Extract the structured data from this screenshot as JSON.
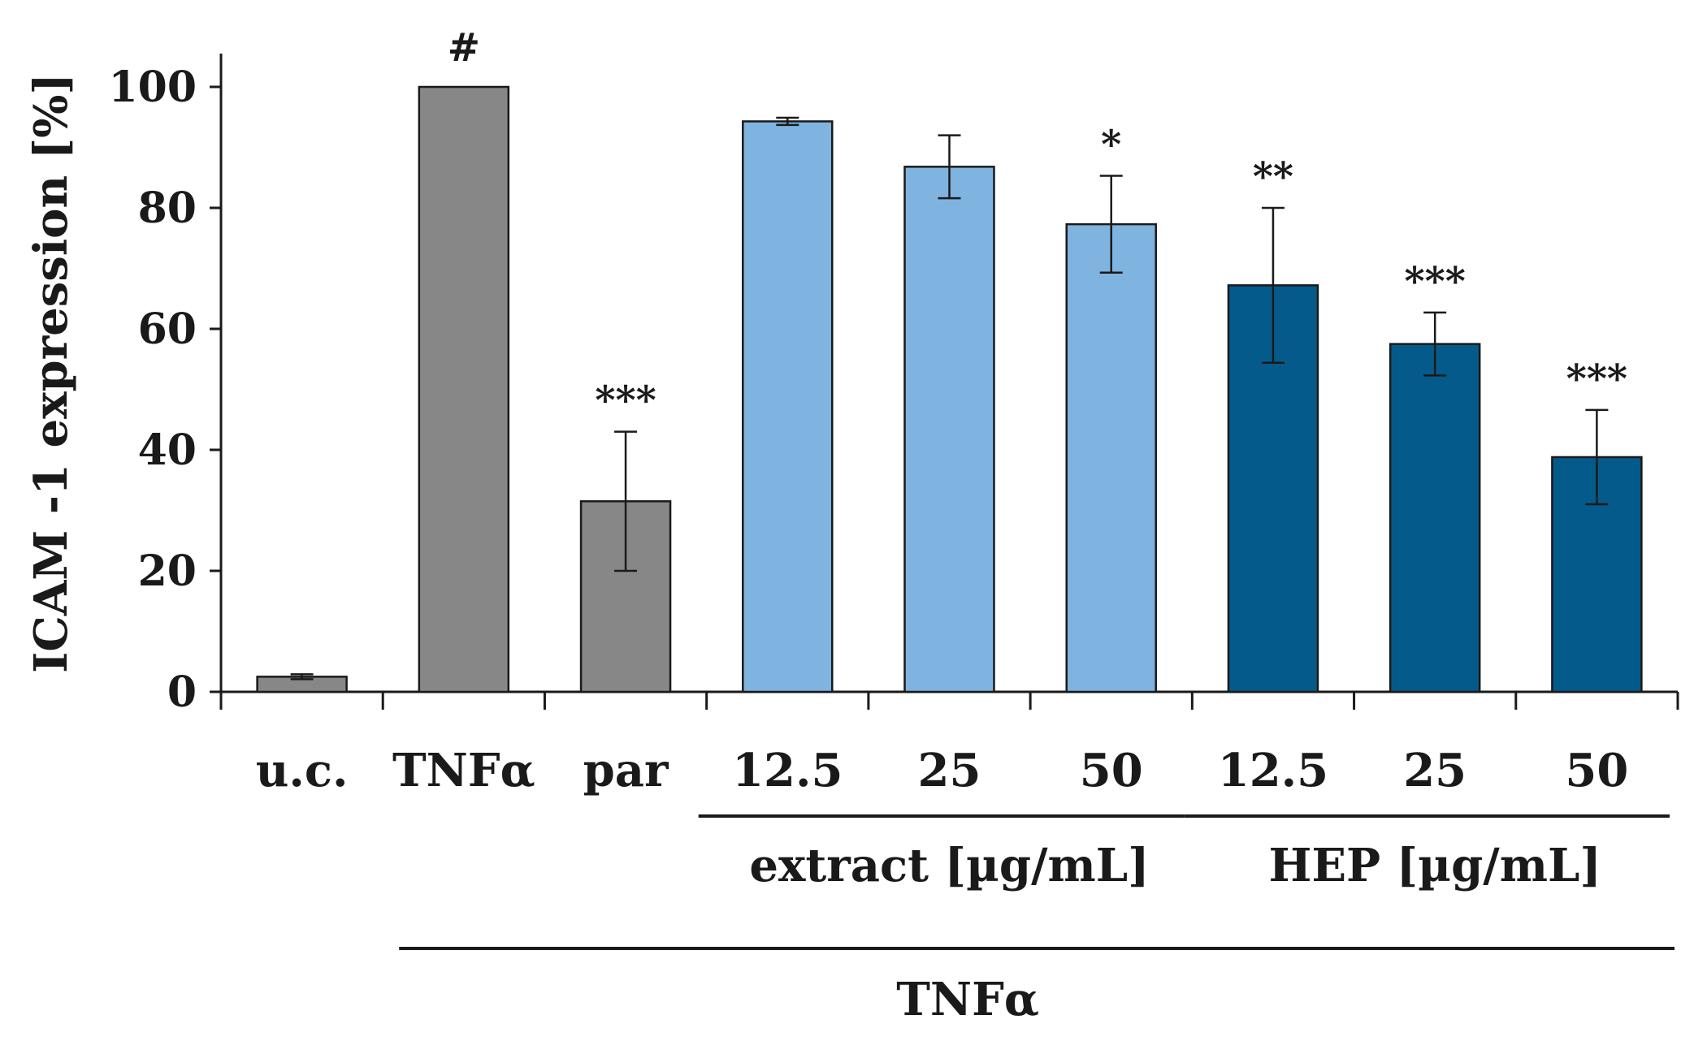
{
  "chart_data": {
    "type": "bar",
    "ylabel": "ICAM -1 expression [%]",
    "ylim": [
      0,
      100
    ],
    "yticks": [
      0,
      20,
      40,
      60,
      80,
      100
    ],
    "grid": false,
    "categories": [
      "u.c.",
      "TNFα",
      "par",
      "12.5",
      "25",
      "50",
      "12.5",
      "25",
      "50"
    ],
    "values": [
      2.5,
      100,
      31.5,
      94.3,
      86.8,
      77.3,
      67.2,
      57.5,
      38.8
    ],
    "errors": [
      0.4,
      0,
      11.5,
      0.6,
      5.2,
      8.0,
      12.8,
      5.2,
      7.8
    ],
    "significance": [
      "",
      "#",
      "***",
      "",
      "",
      "*",
      "**",
      "***",
      "***"
    ],
    "colors": [
      "#878787",
      "#878787",
      "#878787",
      "#7fb3e0",
      "#7fb3e0",
      "#7fb3e0",
      "#055a8c",
      "#055a8c",
      "#055a8c"
    ],
    "groups": [
      {
        "label": "extract [µg/mL]",
        "from": 3,
        "to": 5
      },
      {
        "label": "HEP [µg/mL]",
        "from": 6,
        "to": 8
      }
    ],
    "treatment_label": "TNFα",
    "treatment_from": 1,
    "treatment_to": 8
  }
}
